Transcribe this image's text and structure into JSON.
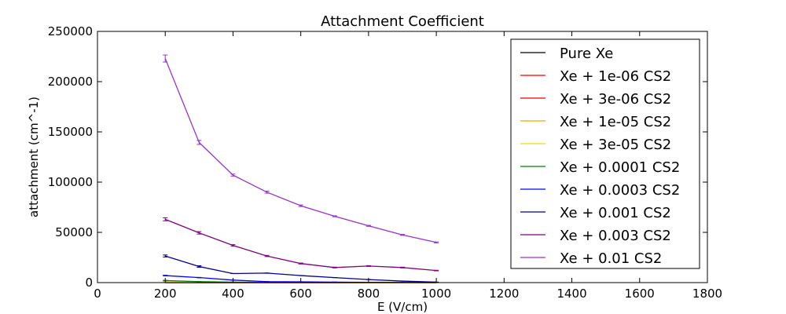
{
  "chart_data": {
    "type": "line",
    "title": "Attachment Coefficient",
    "xlabel": "E (V/cm)",
    "ylabel": "attachment (cm^-1)",
    "xlim": [
      0,
      1800
    ],
    "ylim": [
      0,
      250000
    ],
    "xticks": [
      0,
      200,
      400,
      600,
      800,
      1000,
      1200,
      1400,
      1600,
      1800
    ],
    "xtick_labels": [
      "0",
      "200",
      "400",
      "600",
      "800",
      "1000",
      "1200",
      "1400",
      "1600",
      "1800"
    ],
    "yticks": [
      0,
      50000,
      100000,
      150000,
      200000,
      250000
    ],
    "ytick_labels": [
      "0",
      "50000",
      "100000",
      "150000",
      "200000",
      "250000"
    ],
    "grid": false,
    "legend_position": "top-right",
    "x": [
      200,
      300,
      400,
      500,
      600,
      700,
      800,
      900,
      1000
    ],
    "series": [
      {
        "name": "Pure Xe",
        "color": "#000000",
        "values": [
          0,
          0,
          0,
          0,
          0,
          0,
          0,
          0,
          0
        ],
        "errors": [
          0,
          0,
          0,
          0,
          0,
          0,
          0,
          0,
          0
        ]
      },
      {
        "name": "Xe + 1e-06 CS2",
        "color": "#ff0000",
        "values": [
          0,
          0,
          0,
          0,
          0,
          0,
          0,
          0,
          0
        ],
        "errors": [
          0,
          0,
          0,
          0,
          0,
          0,
          0,
          0,
          0
        ]
      },
      {
        "name": "Xe + 3e-06 CS2",
        "color": "#ee0000",
        "values": [
          0,
          0,
          0,
          0,
          0,
          0,
          0,
          0,
          0
        ],
        "errors": [
          0,
          0,
          0,
          0,
          0,
          0,
          0,
          0,
          0
        ]
      },
      {
        "name": "Xe + 1e-05 CS2",
        "color": "#ffa500",
        "values": [
          100,
          60,
          40,
          30,
          20,
          15,
          10,
          8,
          5
        ],
        "errors": [
          0,
          0,
          0,
          0,
          0,
          0,
          0,
          0,
          0
        ]
      },
      {
        "name": "Xe + 3e-05 CS2",
        "color": "#ffd700",
        "values": [
          500,
          300,
          200,
          150,
          100,
          80,
          60,
          50,
          40
        ],
        "errors": [
          0,
          0,
          0,
          0,
          0,
          0,
          0,
          0,
          0
        ]
      },
      {
        "name": "Xe + 0.0001 CS2",
        "color": "#008000",
        "values": [
          2000,
          1000,
          500,
          300,
          200,
          150,
          100,
          80,
          60
        ],
        "errors": [
          300,
          200,
          0,
          0,
          0,
          0,
          0,
          0,
          0
        ]
      },
      {
        "name": "Xe + 0.0003 CS2",
        "color": "#0000ff",
        "values": [
          7000,
          5000,
          2500,
          1000,
          800,
          500,
          300,
          200,
          100
        ],
        "errors": [
          300,
          200,
          0,
          0,
          0,
          0,
          0,
          0,
          0
        ]
      },
      {
        "name": "Xe + 0.001 CS2",
        "color": "#00008b",
        "values": [
          26500,
          16000,
          9000,
          9500,
          7000,
          5000,
          3000,
          1500,
          500
        ],
        "errors": [
          1000,
          800,
          0,
          0,
          0,
          0,
          0,
          0,
          0
        ]
      },
      {
        "name": "Xe + 0.003 CS2",
        "color": "#800080",
        "values": [
          63000,
          49500,
          37000,
          26500,
          19000,
          15000,
          16500,
          15000,
          12000
        ],
        "errors": [
          1500,
          1200,
          800,
          600,
          500,
          400,
          400,
          400,
          300
        ]
      },
      {
        "name": "Xe + 0.01 CS2",
        "color": "#9932cc",
        "values": [
          223000,
          139500,
          107000,
          90000,
          76500,
          66000,
          56500,
          47500,
          40000
        ],
        "errors": [
          3500,
          2000,
          1000,
          1000,
          800,
          500,
          500,
          500,
          500
        ]
      }
    ]
  }
}
